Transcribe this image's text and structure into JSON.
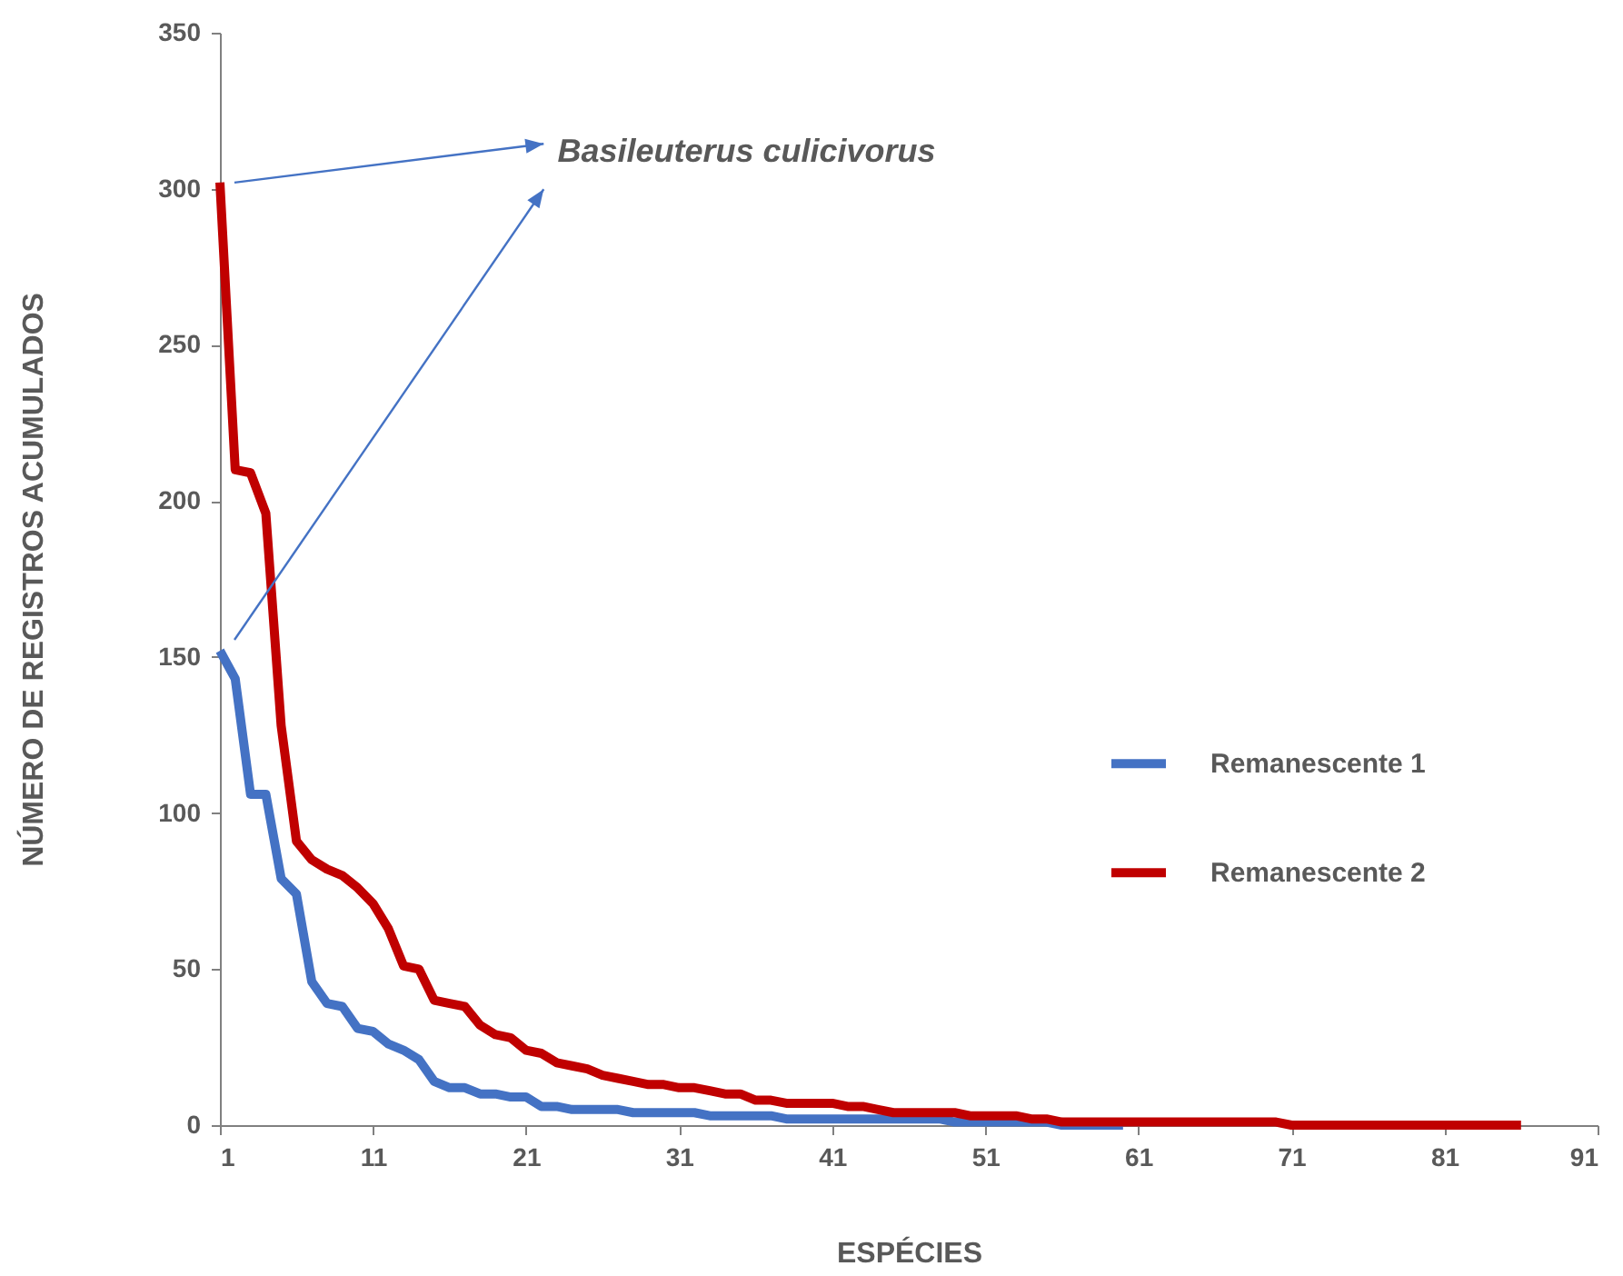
{
  "chart_data": {
    "type": "line",
    "xlabel": "ESPÉCIES",
    "ylabel": "NÚMERO DE REGISTROS ACUMULADOS",
    "annotations": [
      "Basileuterus culicivorus"
    ],
    "x": [
      1,
      2,
      3,
      4,
      5,
      6,
      7,
      8,
      9,
      10,
      11,
      12,
      13,
      14,
      15,
      16,
      17,
      18,
      19,
      20,
      21,
      22,
      23,
      24,
      25,
      26,
      27,
      28,
      29,
      30,
      31,
      32,
      33,
      34,
      35,
      36,
      37,
      38,
      39,
      40,
      41,
      42,
      43,
      44,
      45,
      46,
      47,
      48,
      49,
      50,
      51,
      52,
      53,
      54,
      55,
      56,
      57,
      58,
      59,
      60,
      61,
      62,
      63,
      64,
      65,
      66,
      67,
      68,
      69,
      70,
      71,
      72,
      73,
      74,
      75,
      76,
      77,
      78,
      79,
      80,
      81,
      82,
      83,
      84,
      85,
      86
    ],
    "series": [
      {
        "name": "Remanescente 1",
        "color": "#4472c4",
        "values": [
          152,
          143,
          106,
          106,
          79,
          74,
          46,
          39,
          38,
          31,
          30,
          26,
          24,
          21,
          14,
          12,
          12,
          10,
          10,
          9,
          9,
          6,
          6,
          5,
          5,
          5,
          5,
          4,
          4,
          4,
          4,
          4,
          3,
          3,
          3,
          3,
          3,
          2,
          2,
          2,
          2,
          2,
          2,
          2,
          2,
          2,
          2,
          2,
          1,
          1,
          1,
          1,
          1,
          1,
          1,
          0,
          0,
          0,
          0,
          0,
          null,
          null,
          null,
          null,
          null,
          null,
          null,
          null,
          null,
          null,
          null,
          null,
          null,
          null,
          null,
          null,
          null,
          null,
          null,
          null,
          null,
          null,
          null,
          null,
          null,
          null
        ]
      },
      {
        "name": "Remanescente 2",
        "color": "#c00000",
        "values": [
          302,
          210,
          209,
          196,
          128,
          91,
          85,
          82,
          80,
          76,
          71,
          63,
          51,
          50,
          40,
          39,
          38,
          32,
          29,
          28,
          24,
          23,
          20,
          19,
          18,
          16,
          15,
          14,
          13,
          13,
          12,
          12,
          11,
          10,
          10,
          8,
          8,
          7,
          7,
          7,
          7,
          6,
          6,
          5,
          4,
          4,
          4,
          4,
          4,
          3,
          3,
          3,
          3,
          2,
          2,
          1,
          1,
          1,
          1,
          1,
          1,
          1,
          1,
          1,
          1,
          1,
          1,
          1,
          1,
          1,
          0,
          0,
          0,
          0,
          0,
          0,
          0,
          0,
          0,
          0,
          0,
          0,
          0,
          0,
          0,
          0
        ]
      }
    ],
    "xlim": [
      1,
      91
    ],
    "xticks": [
      1,
      11,
      21,
      31,
      41,
      51,
      61,
      71,
      81,
      91
    ],
    "ylim": [
      0,
      350
    ],
    "yticks": [
      0,
      50,
      100,
      150,
      200,
      250,
      300,
      350
    ],
    "grid": false,
    "legend": "right",
    "marker": "none",
    "line_style": "solid"
  }
}
